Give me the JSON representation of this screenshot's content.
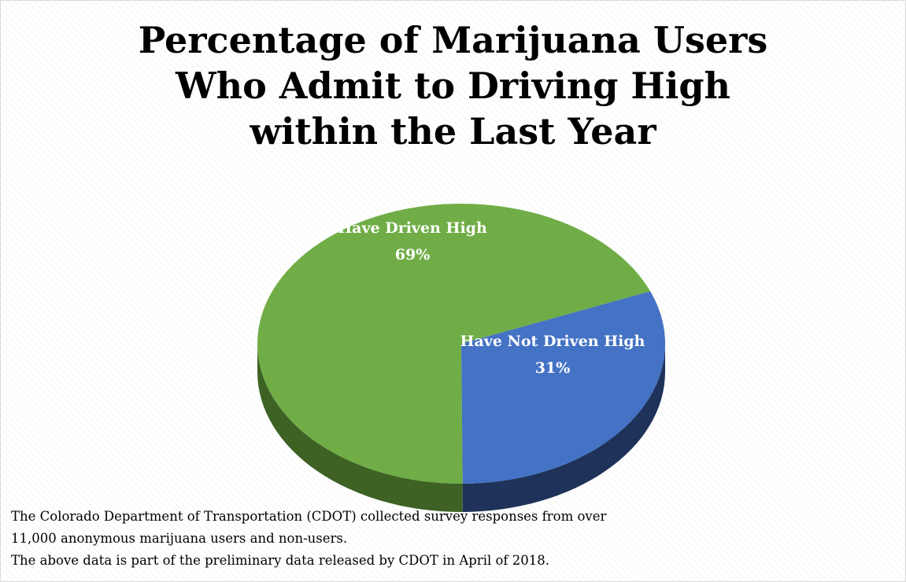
{
  "title_lines": [
    "Percentage of  Marijuana Users",
    "Who Admit to Driving High",
    "within the Last Year"
  ],
  "caption": {
    "line1": "The Colorado Department of Transportation (CDOT) collected survey responses from over",
    "line2": "11,000 anonymous marijuana users and non-users.",
    "line3": "The above data is part of the preliminary data released by CDOT in April of 2018."
  },
  "chart_data": {
    "type": "pie",
    "title": "Percentage of  Marijuana Users Who Admit to Driving High within the Last Year",
    "style": "3d",
    "legend": "none",
    "slices": [
      {
        "label": "Have Driven High",
        "value": 69,
        "display": "69%",
        "color": "#70ad47",
        "side_color": "#3d6224"
      },
      {
        "label": "Have Not Driven High",
        "value": 31,
        "display": "31%",
        "color": "#4472c4",
        "side_color": "#1f3259"
      }
    ]
  }
}
